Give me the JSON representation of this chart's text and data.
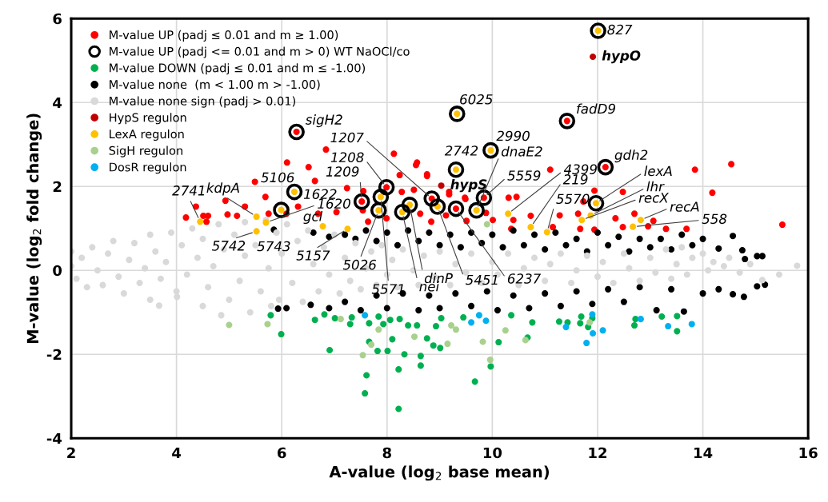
{
  "chart_data": {
    "type": "scatter",
    "xlabel": "A-value (log$_{2}$ base mean)",
    "ylabel": "M-value (log$_{2}$ fold change)",
    "xlim": [
      2,
      16
    ],
    "xticks": [
      2,
      4,
      6,
      8,
      10,
      12,
      14,
      16
    ],
    "ylim": [
      -4,
      6
    ],
    "yticks": [
      -4,
      -2,
      0,
      2,
      4,
      6
    ],
    "grid": true,
    "legend": "top left",
    "marker": "circle",
    "series": [
      {
        "name": "M-value UP (padj ≤ 0.01 and m ≥ 1.00)",
        "color": "#ff0000",
        "x": [
          4.37,
          4.18,
          4.51,
          4.6,
          4.57,
          4.93,
          4.97,
          5.15,
          5.3,
          5.49,
          5.69,
          5.75,
          6.09,
          6.1,
          6.31,
          6.51,
          6.63,
          6.84,
          6.69,
          7.04,
          7.24,
          7.55,
          7.54,
          7.64,
          8.24,
          8.57,
          8.76,
          8.51,
          8.28,
          8.63,
          7.99,
          9.18,
          9.48,
          8.84,
          8.13,
          8.55,
          8.76,
          9.18,
          9.49,
          9.12,
          9.51,
          9.88,
          10.01,
          10.31,
          10.46,
          10.4,
          10.36,
          11.1,
          10.73,
          11.28,
          11.15,
          11.63,
          11.67,
          11.94,
          11.94,
          11.73,
          12.48,
          12.34,
          12.7,
          12.48,
          13.06,
          12.96,
          13.3,
          13.69,
          13.85,
          14.18,
          14.54,
          15.51,
          6.28,
          11.42,
          12.15,
          9.84,
          7.52,
          7.99,
          8.85,
          9.31
        ],
        "values": [
          1.52,
          1.26,
          1.3,
          1.3,
          1.16,
          1.66,
          1.33,
          1.3,
          1.52,
          2.11,
          1.75,
          1.35,
          1.35,
          2.57,
          1.52,
          2.46,
          2.13,
          2.88,
          1.35,
          1.39,
          1.96,
          1.89,
          1.43,
          1.16,
          2.27,
          2.57,
          2.29,
          1.92,
          1.87,
          1.35,
          1.24,
          1.87,
          1.73,
          1.16,
          2.78,
          2.51,
          2.25,
          1.81,
          1.7,
          1.31,
          1.18,
          1.37,
          1.2,
          1.73,
          1.75,
          1.2,
          0.99,
          2.4,
          1.3,
          1.31,
          1.03,
          1.35,
          0.99,
          1.9,
          0.97,
          1.64,
          1.87,
          1.24,
          1.35,
          1.03,
          1.18,
          1.05,
          0.99,
          0.99,
          2.4,
          1.85,
          2.53,
          1.09,
          3.3,
          3.56,
          2.46,
          1.73,
          1.64,
          1.98,
          1.71,
          1.47
        ]
      },
      {
        "name": "M-value UP (padj <= 0.01 and m > 0) WT NaOCl/co",
        "color": "#000000",
        "type": "bubble",
        "x": [
          6.28,
          9.33,
          12.01,
          11.42,
          9.97,
          9.31,
          12.15,
          11.97,
          9.84,
          9.7,
          9.31,
          8.96,
          8.85,
          8.43,
          8.29,
          6.24,
          5.99,
          7.52,
          7.99,
          7.88,
          7.84
        ],
        "values": [
          3.3,
          3.73,
          5.71,
          3.56,
          2.86,
          2.4,
          2.46,
          1.6,
          1.73,
          1.43,
          1.47,
          1.52,
          1.71,
          1.56,
          1.39,
          1.87,
          1.44,
          1.64,
          1.98,
          1.75,
          1.43
        ],
        "sizes": [
          1,
          1,
          1,
          1,
          1,
          1,
          1,
          1,
          1,
          1,
          1,
          1,
          1,
          1,
          1,
          1,
          1,
          1,
          1,
          1,
          1
        ]
      },
      {
        "name": "M-value DOWN (padj ≤ 0.01 and m ≤ -1.00)",
        "color": "#00b050",
        "x": [
          5.79,
          5.99,
          6.63,
          6.81,
          6.91,
          7.01,
          7.3,
          7.33,
          7.66,
          7.66,
          7.61,
          7.58,
          7.82,
          7.93,
          7.84,
          8.01,
          8.1,
          8.06,
          8.24,
          8.22,
          8.22,
          8.33,
          8.4,
          8.57,
          8.64,
          8.64,
          8.76,
          8.88,
          9.01,
          8.93,
          9.03,
          9.45,
          9.97,
          9.67,
          10.12,
          10.36,
          10.67,
          10.76,
          11.27,
          11.43,
          11.67,
          11.69,
          11.82,
          11.9,
          12.7,
          12.72,
          13.22,
          13.51,
          13.51
        ],
        "values": [
          -1.07,
          -1.52,
          -1.18,
          -1.05,
          -1.9,
          -1.14,
          -1.28,
          -1.12,
          -1.26,
          -1.7,
          -2.5,
          -2.93,
          -1.92,
          -1.28,
          -1.1,
          -1.92,
          -1.64,
          -1.18,
          -1.16,
          -2.36,
          -3.3,
          -2.0,
          -1.31,
          -1.31,
          -2.04,
          -2.27,
          -1.62,
          -1.79,
          -1.85,
          -1.33,
          -1.14,
          -1.12,
          -2.29,
          -2.65,
          -1.71,
          -1.07,
          -1.6,
          -1.24,
          -1.22,
          -1.24,
          -1.26,
          -1.1,
          -1.35,
          -1.14,
          -1.31,
          -1.16,
          -1.1,
          -1.09,
          -1.45
        ]
      },
      {
        "name": "M-value none  (m < 1.00 m > -1.00)",
        "color": "#000000",
        "x": [
          5.85,
          6.6,
          6.9,
          7.2,
          7.4,
          7.6,
          7.8,
          8.0,
          8.2,
          8.4,
          8.6,
          8.8,
          9.0,
          9.2,
          9.4,
          9.6,
          9.8,
          10.0,
          10.2,
          10.4,
          10.6,
          10.8,
          11.0,
          11.2,
          11.4,
          11.6,
          11.8,
          12.0,
          12.2,
          12.4,
          12.6,
          12.8,
          13.0,
          13.2,
          13.4,
          13.6,
          13.8,
          14.0,
          14.3,
          14.57,
          14.75,
          14.8,
          15.03,
          15.13,
          5.93,
          6.09,
          6.55,
          6.9,
          7.2,
          7.5,
          7.8,
          8.0,
          8.3,
          8.6,
          8.8,
          9.0,
          9.3,
          9.6,
          9.9,
          10.1,
          10.4,
          10.7,
          11.0,
          11.3,
          11.6,
          11.9,
          12.2,
          12.5,
          12.8,
          13.12,
          13.4,
          13.64,
          14.0,
          14.3,
          14.57,
          14.78,
          15.03,
          15.18
        ],
        "values": [
          0.97,
          0.9,
          0.8,
          0.85,
          0.75,
          0.95,
          0.7,
          0.9,
          0.6,
          0.95,
          0.7,
          0.9,
          0.6,
          0.85,
          0.55,
          0.9,
          0.65,
          0.85,
          0.55,
          0.95,
          0.6,
          0.85,
          0.5,
          0.9,
          0.6,
          0.75,
          0.45,
          0.9,
          0.6,
          0.8,
          0.45,
          0.75,
          0.55,
          0.75,
          0.5,
          0.85,
          0.6,
          0.75,
          0.52,
          0.82,
          0.48,
          0.27,
          0.34,
          0.34,
          -0.91,
          -0.9,
          -0.82,
          -0.9,
          -0.75,
          -0.95,
          -0.6,
          -0.9,
          -0.55,
          -0.95,
          -0.6,
          -0.9,
          -0.55,
          -0.85,
          -0.5,
          -0.95,
          -0.6,
          -0.9,
          -0.55,
          -0.85,
          -0.5,
          -0.8,
          -0.45,
          -0.75,
          -0.4,
          -0.95,
          -0.45,
          -0.98,
          -0.55,
          -0.45,
          -0.57,
          -0.63,
          -0.38,
          -0.34
        ]
      },
      {
        "name": "M-value none sign (padj > 0.01)",
        "color": "#d9d9d9",
        "x": [
          2.0,
          2.0,
          2.1,
          2.2,
          2.3,
          2.4,
          2.5,
          2.6,
          2.7,
          2.8,
          2.9,
          3.0,
          3.1,
          3.2,
          3.3,
          3.4,
          3.5,
          3.5,
          3.6,
          3.67,
          3.7,
          3.8,
          3.9,
          4.0,
          4.01,
          4.1,
          4.2,
          4.3,
          4.4,
          4.5,
          4.5,
          4.6,
          4.7,
          4.8,
          4.85,
          4.9,
          5.0,
          5.1,
          5.2,
          5.3,
          5.3,
          5.4,
          5.5,
          5.6,
          5.7,
          5.75,
          5.8,
          5.9,
          5.95,
          6.0,
          6.1,
          6.2,
          6.3,
          6.4,
          6.5,
          6.6,
          6.7,
          6.8,
          6.9,
          7.0,
          7.1,
          7.2,
          7.3,
          7.4,
          7.5,
          7.6,
          7.7,
          7.8,
          7.9,
          8.0,
          8.1,
          8.2,
          8.3,
          8.5,
          8.6,
          8.7,
          8.9,
          9.0,
          9.2,
          9.3,
          9.5,
          9.6,
          9.8,
          10.0,
          10.1,
          10.3,
          10.5,
          10.6,
          10.8,
          11.0,
          11.1,
          11.3,
          11.5,
          11.6,
          11.8,
          12.0,
          12.1,
          12.3,
          12.5,
          12.6,
          12.8,
          13.0,
          13.1,
          13.3,
          13.4,
          13.5,
          13.6,
          13.7,
          13.8,
          14.0,
          14.1,
          14.2,
          14.4,
          14.5,
          14.7,
          14.9,
          15.13,
          15.45,
          15.79
        ],
        "values": [
          0.45,
          0.1,
          -0.2,
          0.3,
          -0.4,
          0.55,
          0.0,
          -0.35,
          0.4,
          0.7,
          -0.15,
          -0.55,
          0.25,
          0.65,
          -0.3,
          0.05,
          0.85,
          -0.7,
          0.45,
          -0.84,
          -0.2,
          0.2,
          0.9,
          -0.5,
          -0.63,
          0.6,
          -0.1,
          1.0,
          0.3,
          -0.85,
          0.75,
          -0.4,
          0.1,
          1.1,
          -1.07,
          0.5,
          -0.7,
          0.85,
          -0.25,
          1.15,
          0.35,
          -1.0,
          0.6,
          -0.5,
          1.2,
          0.05,
          -0.85,
          0.9,
          -0.7,
          0.4,
          1.1,
          -0.3,
          0.7,
          -0.75,
          0.95,
          0.15,
          -0.5,
          0.55,
          -0.1,
          0.85,
          -0.55,
          0.3,
          -0.25,
          0.65,
          -0.45,
          0.05,
          0.45,
          -0.35,
          0.6,
          -0.1,
          0.25,
          -0.4,
          0.5,
          0.0,
          -0.35,
          0.35,
          -0.15,
          0.45,
          -0.35,
          0.15,
          -0.05,
          0.4,
          -0.3,
          0.2,
          -0.1,
          0.4,
          -0.35,
          0.05,
          0.3,
          -0.25,
          0.15,
          0.4,
          -0.3,
          0.0,
          0.35,
          -0.15,
          0.2,
          -0.3,
          0.4,
          0.05,
          -0.25,
          0.3,
          -0.05,
          0.5,
          -0.2,
          0.15,
          0.55,
          -0.1,
          0.3,
          0.4,
          0.0,
          0.2,
          0.1,
          0.3,
          -0.05,
          0.15,
          -0.23,
          -0.1,
          0.11
        ]
      },
      {
        "name": "HypS regulon",
        "color": "#c00000",
        "x": [
          11.91,
          9.03
        ],
        "values": [
          5.09,
          2.02
        ]
      },
      {
        "name": "LexA regulon",
        "color": "#ffc000",
        "x": [
          9.33,
          12.01,
          9.97,
          9.31,
          11.97,
          9.7,
          8.96,
          8.43,
          8.29,
          6.24,
          5.99,
          7.88,
          7.84,
          4.45,
          5.52,
          5.7,
          6.78,
          5.52,
          7.25,
          10.3,
          10.73,
          11.04,
          11.87,
          11.7,
          12.82,
          12.67
        ],
        "values": [
          3.73,
          5.71,
          2.86,
          2.4,
          1.6,
          1.43,
          1.52,
          1.56,
          1.39,
          1.87,
          1.44,
          1.75,
          1.43,
          1.16,
          1.28,
          1.14,
          1.05,
          0.93,
          0.99,
          1.35,
          1.03,
          0.91,
          1.31,
          1.2,
          1.2,
          1.04
        ]
      },
      {
        "name": "SigH regulon",
        "color": "#a9d18e",
        "x": [
          5.0,
          5.73,
          7.12,
          7.7,
          7.54,
          7.84,
          8.52,
          9.15,
          9.22,
          9.31,
          9.82,
          9.96,
          10.25,
          10.63,
          11.85,
          9.9
        ],
        "values": [
          -1.3,
          -1.28,
          -1.16,
          -1.77,
          -2.02,
          -1.41,
          -1.58,
          -1.75,
          -1.31,
          -1.41,
          -1.7,
          -2.13,
          -1.43,
          -1.66,
          -1.24,
          1.1
        ]
      },
      {
        "name": "DosR regulon",
        "color": "#00b0f0",
        "x": [
          7.58,
          9.6,
          9.75,
          9.88,
          11.4,
          11.9,
          11.91,
          11.79,
          12.1,
          12.82,
          13.34,
          13.79
        ],
        "values": [
          -1.07,
          -1.24,
          -1.07,
          -1.2,
          -1.35,
          -1.05,
          -1.5,
          -1.73,
          -1.43,
          -1.16,
          -1.33,
          -1.28
        ]
      }
    ],
    "annotations": [
      {
        "text": "sigH2",
        "x": 6.28,
        "y": 3.3
      },
      {
        "text": "6025",
        "x": 9.33,
        "y": 3.73
      },
      {
        "text": "827",
        "x": 12.01,
        "y": 5.71
      },
      {
        "text": "hypO",
        "x": 11.91,
        "y": 5.09
      },
      {
        "text": "fadD9",
        "x": 11.42,
        "y": 3.56
      },
      {
        "text": "2990",
        "x": 9.97,
        "y": 2.86
      },
      {
        "text": "2742",
        "x": 9.31,
        "y": 2.4
      },
      {
        "text": "hypS",
        "x": 9.03,
        "y": 2.02
      },
      {
        "text": "gdh2",
        "x": 12.15,
        "y": 2.46
      },
      {
        "text": "lexA",
        "x": 11.97,
        "y": 1.6
      },
      {
        "text": "5559",
        "x": 9.84,
        "y": 1.73
      },
      {
        "text": "dnaE2",
        "x": 9.7,
        "y": 1.43
      },
      {
        "text": "6237",
        "x": 9.31,
        "y": 1.47
      },
      {
        "text": "5451",
        "x": 8.96,
        "y": 1.52
      },
      {
        "text": "1207",
        "x": 8.85,
        "y": 1.71
      },
      {
        "text": "dinP",
        "x": 8.43,
        "y": 1.56
      },
      {
        "text": "nei",
        "x": 8.29,
        "y": 1.39
      },
      {
        "text": "5106",
        "x": 6.24,
        "y": 1.87
      },
      {
        "text": "1622",
        "x": 6.24,
        "y": 1.87
      },
      {
        "text": "1620",
        "x": 5.7,
        "y": 1.14
      },
      {
        "text": "1209",
        "x": 7.52,
        "y": 1.64
      },
      {
        "text": "1208",
        "x": 7.99,
        "y": 1.98
      },
      {
        "text": "5571",
        "x": 7.88,
        "y": 1.75
      },
      {
        "text": "5026",
        "x": 7.84,
        "y": 1.43
      },
      {
        "text": "5157",
        "x": 7.25,
        "y": 0.99
      },
      {
        "text": "5742",
        "x": 5.52,
        "y": 0.93
      },
      {
        "text": "5743",
        "x": 5.85,
        "y": 0.97
      },
      {
        "text": "gcl",
        "x": 6.78,
        "y": 1.05
      },
      {
        "text": "kdpA",
        "x": 5.52,
        "y": 1.28
      },
      {
        "text": "2741",
        "x": 4.45,
        "y": 1.16
      },
      {
        "text": "4399",
        "x": 10.3,
        "y": 1.35
      },
      {
        "text": "219",
        "x": 10.73,
        "y": 1.03
      },
      {
        "text": "5570",
        "x": 11.04,
        "y": 0.91
      },
      {
        "text": "lhr",
        "x": 11.87,
        "y": 1.31
      },
      {
        "text": "recX",
        "x": 11.7,
        "y": 1.2
      },
      {
        "text": "recA",
        "x": 12.82,
        "y": 1.2
      },
      {
        "text": "558",
        "x": 12.67,
        "y": 1.04
      }
    ]
  }
}
